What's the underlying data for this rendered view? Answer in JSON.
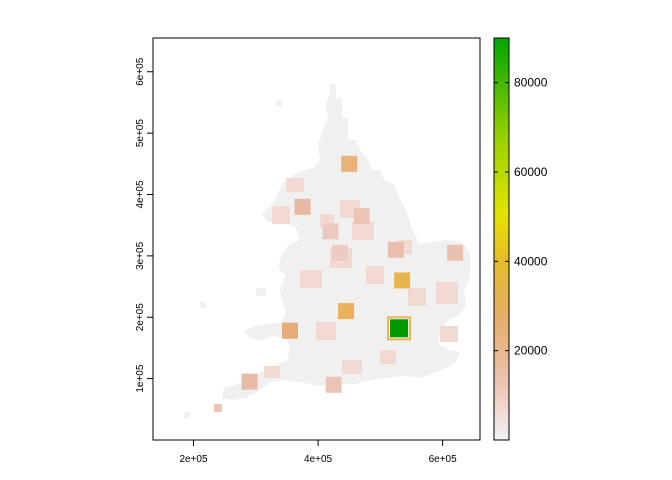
{
  "map": {
    "x_ticks": [
      {
        "value": 200000,
        "label": "2e+05"
      },
      {
        "value": 400000,
        "label": "4e+05"
      },
      {
        "value": 600000,
        "label": "6e+05"
      }
    ],
    "y_ticks": [
      {
        "value": 100000,
        "label": "1e+05"
      },
      {
        "value": 200000,
        "label": "2e+05"
      },
      {
        "value": 300000,
        "label": "3e+05"
      },
      {
        "value": 400000,
        "label": "4e+05"
      },
      {
        "value": 500000,
        "label": "5e+05"
      },
      {
        "value": 600000,
        "label": "6e+05"
      }
    ],
    "x_range": [
      135000,
      660000
    ],
    "y_range": [
      0,
      655000
    ],
    "background_color": "#f0f0f0",
    "highlight_cells": [
      {
        "x": 450000,
        "y": 450000,
        "value": 20000,
        "color": "#e9b27a"
      },
      {
        "x": 375000,
        "y": 380000,
        "value": 14000,
        "color": "#e6b8a2"
      },
      {
        "x": 420000,
        "y": 340000,
        "value": 9000,
        "color": "#ecc9be"
      },
      {
        "x": 470000,
        "y": 365000,
        "value": 10000,
        "color": "#ebc4b7"
      },
      {
        "x": 435000,
        "y": 305000,
        "value": 8000,
        "color": "#ecccc2"
      },
      {
        "x": 535000,
        "y": 260000,
        "value": 34000,
        "color": "#e8b44e"
      },
      {
        "x": 445000,
        "y": 210000,
        "value": 33000,
        "color": "#e9b159"
      },
      {
        "x": 530000,
        "y": 182000,
        "value": 88000,
        "color": "#009a00"
      },
      {
        "x": 355000,
        "y": 178000,
        "value": 22000,
        "color": "#e5ad7a"
      },
      {
        "x": 620000,
        "y": 305000,
        "value": 10000,
        "color": "#eac0b0"
      },
      {
        "x": 525000,
        "y": 310000,
        "value": 11000,
        "color": "#eabeae"
      },
      {
        "x": 290000,
        "y": 95000,
        "value": 12000,
        "color": "#e8bba9"
      },
      {
        "x": 425000,
        "y": 90000,
        "value": 10000,
        "color": "#ecc4b5"
      }
    ],
    "legend": {
      "ticks": [
        {
          "value": 20000,
          "label": "20000"
        },
        {
          "value": 40000,
          "label": "40000"
        },
        {
          "value": 60000,
          "label": "60000"
        },
        {
          "value": 80000,
          "label": "80000"
        }
      ],
      "min": 0,
      "max": 90000,
      "colors": [
        "#f2f2f2",
        "#ecc3b4",
        "#e7ad6b",
        "#e6bc2a",
        "#e3e300",
        "#99d100",
        "#00a600"
      ]
    }
  }
}
